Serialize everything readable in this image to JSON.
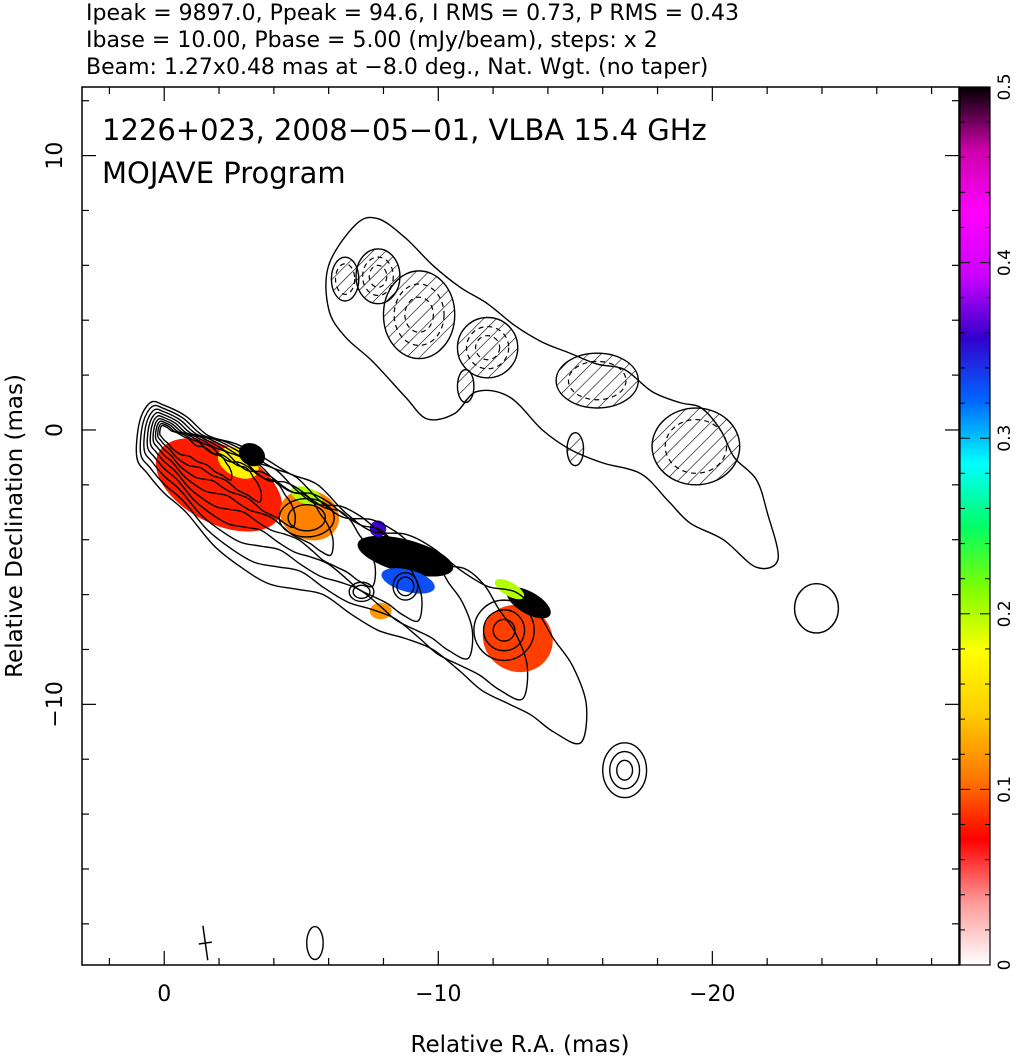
{
  "header": {
    "line1": "Ipeak = 9897.0, Ppeak = 94.6, I RMS = 0.73, P RMS = 0.43",
    "line2": "Ibase = 10.00, Pbase = 5.00 (mJy/beam), steps: x 2",
    "line3": "Beam: 1.27x0.48 mas at −8.0 deg., Nat. Wgt. (no taper)"
  },
  "annotation": {
    "line1": "1226+023, 2008−05−01, VLBA 15.4 GHz",
    "line2": "MOJAVE Program"
  },
  "chart_data": {
    "type": "heatmap",
    "xlabel": "Relative R.A. (mas)",
    "ylabel": "Relative Declination (mas)",
    "xlim": [
      3,
      -29
    ],
    "ylim": [
      -19.5,
      12.5
    ],
    "x_ticks": [
      {
        "value": 0,
        "label": "0"
      },
      {
        "value": -10,
        "label": "−10"
      },
      {
        "value": -20,
        "label": "−20"
      }
    ],
    "y_ticks": [
      {
        "value": 10,
        "label": "10"
      },
      {
        "value": 0,
        "label": "0"
      },
      {
        "value": -10,
        "label": "−10"
      }
    ],
    "colorbar": {
      "range": [
        0,
        0.5
      ],
      "ticks": [
        {
          "value": 0,
          "label": "0"
        },
        {
          "value": 0.1,
          "label": "0.1"
        },
        {
          "value": 0.2,
          "label": "0.2"
        },
        {
          "value": 0.3,
          "label": "0.3"
        },
        {
          "value": 0.4,
          "label": "0.4"
        },
        {
          "value": 0.5,
          "label": "0.5"
        }
      ],
      "colormap": [
        "#ffffff",
        "#ff9999",
        "#ff0000",
        "#ff7a00",
        "#ffcc00",
        "#ffff00",
        "#7fff00",
        "#00ff66",
        "#00ffff",
        "#0066ff",
        "#3300cc",
        "#cc00ff",
        "#ff00ff",
        "#cc00aa",
        "#000000"
      ]
    },
    "jet": {
      "contour_scales": [
        1,
        0.86,
        0.73,
        0.61,
        0.5,
        0.4,
        0.31,
        0.23,
        0.16
      ],
      "contour_points": [
        [
          1.0,
          -1.0
        ],
        [
          0.9,
          0.3
        ],
        [
          0.5,
          1.0
        ],
        [
          0.0,
          0.9
        ],
        [
          -0.8,
          0.5
        ],
        [
          -1.6,
          -0.2
        ],
        [
          -2.6,
          -0.5
        ],
        [
          -3.6,
          -1.0
        ],
        [
          -4.6,
          -1.6
        ],
        [
          -5.6,
          -2.0
        ],
        [
          -6.6,
          -3.0
        ],
        [
          -7.6,
          -3.7
        ],
        [
          -8.8,
          -3.8
        ],
        [
          -9.8,
          -4.3
        ],
        [
          -10.8,
          -5.1
        ],
        [
          -11.8,
          -5.7
        ],
        [
          -12.8,
          -5.9
        ],
        [
          -13.6,
          -6.6
        ],
        [
          -14.2,
          -7.6
        ],
        [
          -14.9,
          -8.6
        ],
        [
          -15.4,
          -10.0
        ],
        [
          -15.2,
          -11.4
        ],
        [
          -14.2,
          -11.0
        ],
        [
          -13.4,
          -10.4
        ],
        [
          -12.6,
          -10.0
        ],
        [
          -11.6,
          -9.5
        ],
        [
          -10.8,
          -8.8
        ],
        [
          -9.8,
          -8.0
        ],
        [
          -8.8,
          -7.6
        ],
        [
          -7.8,
          -7.3
        ],
        [
          -6.8,
          -6.7
        ],
        [
          -5.8,
          -6.0
        ],
        [
          -4.8,
          -5.8
        ],
        [
          -3.8,
          -5.6
        ],
        [
          -2.8,
          -5.0
        ],
        [
          -1.8,
          -4.2
        ],
        [
          -0.8,
          -3.0
        ],
        [
          0.0,
          -2.3
        ],
        [
          0.6,
          -1.6
        ]
      ],
      "knots": [
        {
          "x": -5.2,
          "y": -3.2,
          "rx": 1.0,
          "ry": 0.7,
          "levels": 2
        },
        {
          "x": -7.2,
          "y": -5.9,
          "rx": 0.45,
          "ry": 0.35,
          "levels": 2
        },
        {
          "x": -8.8,
          "y": -5.7,
          "rx": 0.45,
          "ry": 0.5,
          "levels": 2
        },
        {
          "x": -12.4,
          "y": -7.3,
          "rx": 1.1,
          "ry": 1.1,
          "levels": 3
        },
        {
          "x": -16.8,
          "y": -12.4,
          "rx": 0.8,
          "ry": 1.0,
          "levels": 3
        },
        {
          "x": -23.8,
          "y": -6.5,
          "rx": 0.8,
          "ry": 0.9,
          "levels": 1
        },
        {
          "x": -5.5,
          "y": -18.7,
          "rx": 0.3,
          "ry": 0.6,
          "levels": 1
        }
      ],
      "polarization_regions": [
        {
          "x": -2.0,
          "y": -2.0,
          "rx": 2.5,
          "ry": 1.4,
          "angle": 28,
          "value": 0.08
        },
        {
          "x": -2.7,
          "y": -1.2,
          "rx": 0.8,
          "ry": 0.5,
          "angle": 28,
          "value": 0.17
        },
        {
          "x": -3.2,
          "y": -0.9,
          "rx": 0.5,
          "ry": 0.4,
          "angle": 28,
          "value": 0.5
        },
        {
          "x": -5.3,
          "y": -3.1,
          "rx": 1.1,
          "ry": 0.9,
          "angle": 20,
          "value": 0.11
        },
        {
          "x": -5.2,
          "y": -2.4,
          "rx": 0.6,
          "ry": 0.3,
          "angle": 20,
          "value": 0.2
        },
        {
          "x": -8.8,
          "y": -4.6,
          "rx": 1.8,
          "ry": 0.6,
          "angle": 15,
          "value": 0.5
        },
        {
          "x": -8.9,
          "y": -5.5,
          "rx": 1.0,
          "ry": 0.4,
          "angle": 15,
          "value": 0.33
        },
        {
          "x": -7.9,
          "y": -6.6,
          "rx": 0.4,
          "ry": 0.3,
          "angle": 0,
          "value": 0.12
        },
        {
          "x": -7.8,
          "y": -3.6,
          "rx": 0.3,
          "ry": 0.3,
          "angle": 0,
          "value": 0.36
        },
        {
          "x": -12.9,
          "y": -7.6,
          "rx": 1.3,
          "ry": 1.2,
          "angle": 30,
          "value": 0.09
        },
        {
          "x": -13.3,
          "y": -6.3,
          "rx": 0.9,
          "ry": 0.4,
          "angle": 30,
          "value": 0.5
        },
        {
          "x": -12.6,
          "y": -5.8,
          "rx": 0.6,
          "ry": 0.25,
          "angle": 30,
          "value": 0.2
        }
      ]
    },
    "counterjet": {
      "contour_points": [
        [
          -6.0,
          6.0
        ],
        [
          -7.0,
          7.5
        ],
        [
          -7.8,
          7.7
        ],
        [
          -8.8,
          7.0
        ],
        [
          -9.8,
          6.0
        ],
        [
          -10.8,
          5.2
        ],
        [
          -11.8,
          4.6
        ],
        [
          -12.8,
          3.8
        ],
        [
          -13.8,
          3.2
        ],
        [
          -14.8,
          2.8
        ],
        [
          -15.8,
          2.4
        ],
        [
          -16.8,
          2.2
        ],
        [
          -17.8,
          1.4
        ],
        [
          -18.8,
          1.0
        ],
        [
          -19.6,
          0.8
        ],
        [
          -20.3,
          0.0
        ],
        [
          -20.8,
          -1.0
        ],
        [
          -21.6,
          -1.8
        ],
        [
          -22.0,
          -3.0
        ],
        [
          -22.4,
          -4.7
        ],
        [
          -21.6,
          -5.0
        ],
        [
          -20.4,
          -4.0
        ],
        [
          -19.2,
          -3.4
        ],
        [
          -18.4,
          -2.6
        ],
        [
          -17.4,
          -1.6
        ],
        [
          -16.0,
          -1.2
        ],
        [
          -14.8,
          -0.7
        ],
        [
          -13.8,
          0.0
        ],
        [
          -12.6,
          1.2
        ],
        [
          -11.4,
          1.4
        ],
        [
          -10.6,
          0.6
        ],
        [
          -9.6,
          0.4
        ],
        [
          -8.8,
          1.2
        ],
        [
          -7.6,
          2.5
        ],
        [
          -6.6,
          3.4
        ],
        [
          -6.0,
          4.4
        ]
      ],
      "knots": [
        {
          "x": -6.6,
          "y": 5.5,
          "rx": 0.5,
          "ry": 0.8,
          "levels": 2
        },
        {
          "x": -7.8,
          "y": 5.6,
          "rx": 0.8,
          "ry": 1.0,
          "levels": 3
        },
        {
          "x": -9.3,
          "y": 4.2,
          "rx": 1.3,
          "ry": 1.6,
          "levels": 3
        },
        {
          "x": -11.8,
          "y": 3.0,
          "rx": 1.1,
          "ry": 1.1,
          "levels": 3
        },
        {
          "x": -15.8,
          "y": 1.8,
          "rx": 1.5,
          "ry": 1.0,
          "levels": 2
        },
        {
          "x": -19.4,
          "y": -0.6,
          "rx": 1.6,
          "ry": 1.4,
          "levels": 2
        },
        {
          "x": -15.0,
          "y": -0.7,
          "rx": 0.3,
          "ry": 0.6,
          "levels": 1
        },
        {
          "x": -11.0,
          "y": 1.6,
          "rx": 0.3,
          "ry": 0.6,
          "levels": 1
        }
      ]
    },
    "beam": {
      "x": -1.5,
      "y": -18.7,
      "major": 1.27,
      "minor": 0.48,
      "pa_deg": -8.0
    }
  }
}
